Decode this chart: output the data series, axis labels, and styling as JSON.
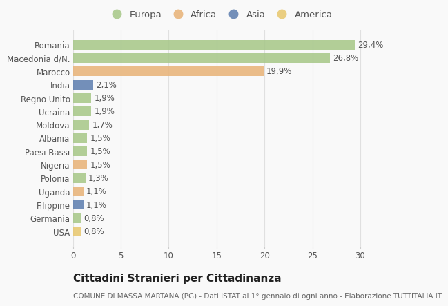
{
  "countries": [
    "Romania",
    "Macedonia d/N.",
    "Marocco",
    "India",
    "Regno Unito",
    "Ucraina",
    "Moldova",
    "Albania",
    "Paesi Bassi",
    "Nigeria",
    "Polonia",
    "Uganda",
    "Filippine",
    "Germania",
    "USA"
  ],
  "values": [
    29.4,
    26.8,
    19.9,
    2.1,
    1.9,
    1.9,
    1.7,
    1.5,
    1.5,
    1.5,
    1.3,
    1.1,
    1.1,
    0.8,
    0.8
  ],
  "labels": [
    "29,4%",
    "26,8%",
    "19,9%",
    "2,1%",
    "1,9%",
    "1,9%",
    "1,7%",
    "1,5%",
    "1,5%",
    "1,5%",
    "1,3%",
    "1,1%",
    "1,1%",
    "0,8%",
    "0,8%"
  ],
  "continents": [
    "Europa",
    "Europa",
    "Africa",
    "Asia",
    "Europa",
    "Europa",
    "Europa",
    "Europa",
    "Europa",
    "Africa",
    "Europa",
    "Africa",
    "Asia",
    "Europa",
    "America"
  ],
  "colors": {
    "Europa": "#a8c88a",
    "Africa": "#e8b47a",
    "Asia": "#6080b0",
    "America": "#e8c870"
  },
  "legend_order": [
    "Europa",
    "Africa",
    "Asia",
    "America"
  ],
  "title": "Cittadini Stranieri per Cittadinanza",
  "subtitle": "COMUNE DI MASSA MARTANA (PG) - Dati ISTAT al 1° gennaio di ogni anno - Elaborazione TUTTITALIA.IT",
  "xlim": [
    0,
    32
  ],
  "xticks": [
    0,
    5,
    10,
    15,
    20,
    25,
    30
  ],
  "background_color": "#f9f9f9",
  "grid_color": "#e0e0e0",
  "bar_height": 0.72,
  "title_fontsize": 11,
  "subtitle_fontsize": 7.5,
  "label_fontsize": 8.5,
  "tick_fontsize": 8.5,
  "legend_fontsize": 9.5
}
